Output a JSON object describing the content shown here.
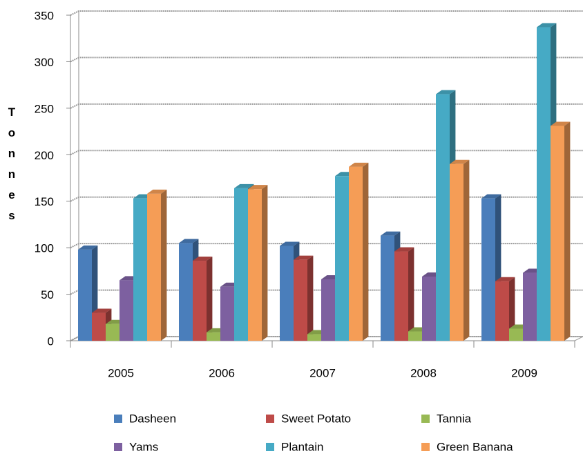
{
  "chart_data": {
    "type": "bar3d",
    "y_label": "Tonnes",
    "categories": [
      "2005",
      "2006",
      "2007",
      "2008",
      "2009"
    ],
    "series": [
      {
        "name": "Dasheen",
        "color": "#4a7ebb",
        "values": [
          98,
          105,
          102,
          113,
          153
        ]
      },
      {
        "name": "Sweet Potato",
        "color": "#be4b48",
        "values": [
          30,
          86,
          87,
          96,
          64
        ]
      },
      {
        "name": "Tannia",
        "color": "#98b954",
        "values": [
          18,
          9,
          7,
          10,
          13
        ]
      },
      {
        "name": "Yams",
        "color": "#7d60a0",
        "values": [
          65,
          58,
          66,
          69,
          73
        ]
      },
      {
        "name": "Plantain",
        "color": "#46aac5",
        "values": [
          153,
          164,
          177,
          265,
          337
        ]
      },
      {
        "name": "Green Banana",
        "color": "#f59d56",
        "values": [
          158,
          163,
          187,
          190,
          231
        ]
      }
    ],
    "ylim": [
      0,
      350
    ],
    "yticks": [
      0,
      50,
      100,
      150,
      200,
      250,
      300,
      350
    ],
    "grid": true,
    "legend": "bottom"
  }
}
